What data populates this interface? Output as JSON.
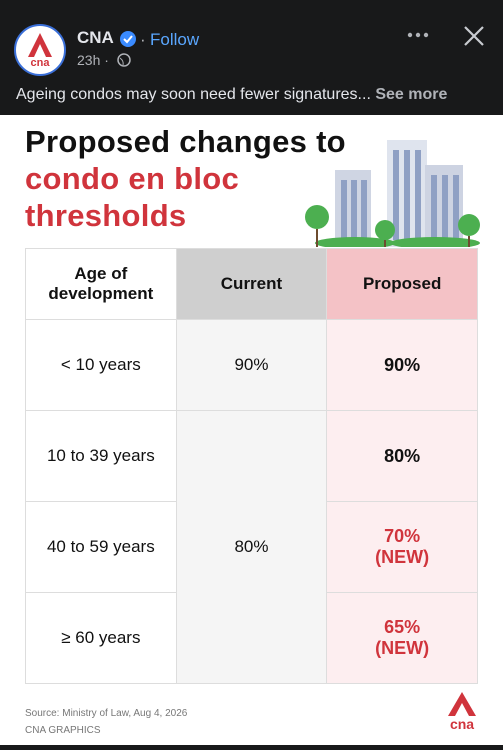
{
  "post": {
    "logo_text": "cna",
    "author": "CNA",
    "follow": "Follow",
    "time": "23h",
    "caption": "Ageing condos may soon need fewer signatures...",
    "see_more": "See more"
  },
  "card": {
    "title": [
      "Proposed changes to",
      "condo en bloc",
      "thresholds"
    ],
    "table": {
      "headers": [
        "Age of development",
        "Current",
        "Proposed"
      ],
      "rows": [
        {
          "age": "< 10 years",
          "proposed": "90%"
        },
        {
          "age": "10 to 39 years",
          "proposed": "80%"
        },
        {
          "age": "40 to 59 years",
          "proposed": "70%",
          "note": "(NEW)"
        },
        {
          "age": "≥ 60 years",
          "proposed": "65%",
          "note": "(NEW)"
        }
      ],
      "current": [
        "90%",
        "80%"
      ]
    },
    "source": "Source: Ministry of Law, Aug 4, 2026",
    "credit": "CNA GRAPHICS",
    "logo_text": "cna"
  }
}
